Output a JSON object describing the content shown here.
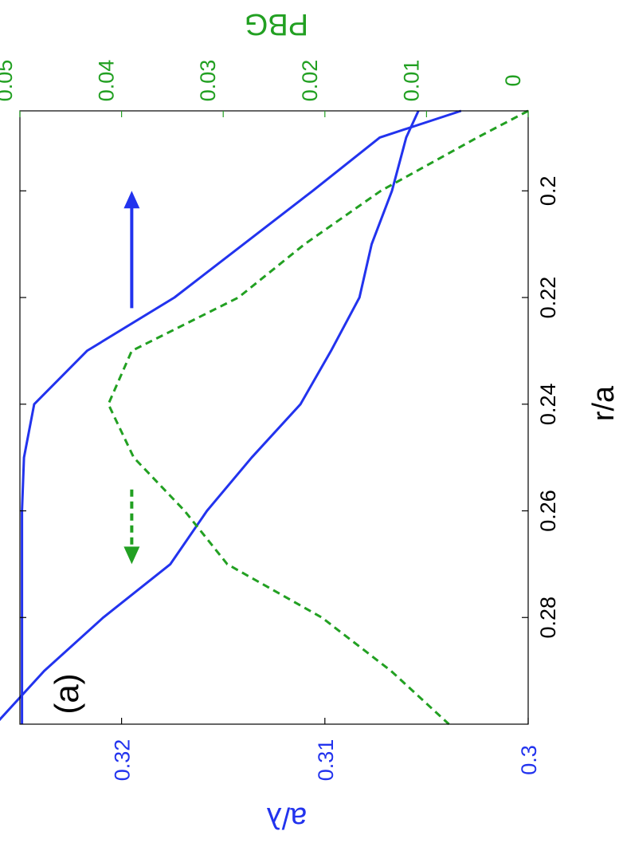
{
  "chart_data": {
    "type": "line",
    "panel_label": "(a)",
    "xlabel": "r/a",
    "ylabel_left": "a/λ",
    "ylabel_right": "PBG",
    "xlim": [
      0.185,
      0.3
    ],
    "ylim_left": [
      0.3,
      0.325
    ],
    "ylim_right": [
      0,
      0.05
    ],
    "x_ticks": [
      "0.2",
      "0.22",
      "0.24",
      "0.26",
      "0.28"
    ],
    "x_tick_values": [
      0.2,
      0.22,
      0.24,
      0.26,
      0.28
    ],
    "y_left_ticks": [
      "0.3",
      "0.31",
      "0.32"
    ],
    "y_left_tick_values": [
      0.3,
      0.31,
      0.32
    ],
    "y_right_ticks": [
      "0",
      "0.01",
      "0.02",
      "0.03",
      "0.04",
      "0.05"
    ],
    "y_right_tick_values": [
      0,
      0.01,
      0.02,
      0.03,
      0.04,
      0.05
    ],
    "colors": {
      "blue": "#2233ee",
      "green": "#22a022",
      "axes": "#000000"
    },
    "series": [
      {
        "axis": "left",
        "style": "solid",
        "color": "#2233ee",
        "x": [
          0.185,
          0.19,
          0.2,
          0.21,
          0.22,
          0.23,
          0.24,
          0.25,
          0.26,
          0.27,
          0.28,
          0.29,
          0.3
        ],
        "y": [
          0.3033,
          0.3073,
          0.3106,
          0.314,
          0.3174,
          0.3217,
          0.3243,
          0.3248,
          0.3249,
          0.3249,
          0.3249,
          0.3249,
          0.3249
        ]
      },
      {
        "axis": "left",
        "style": "solid",
        "color": "#2233ee",
        "x": [
          0.185,
          0.19,
          0.2,
          0.21,
          0.22,
          0.23,
          0.24,
          0.25,
          0.26,
          0.27,
          0.28,
          0.29,
          0.3
        ],
        "y": [
          0.3054,
          0.306,
          0.3067,
          0.3077,
          0.3083,
          0.3097,
          0.3112,
          0.3136,
          0.3158,
          0.3176,
          0.3209,
          0.3238,
          0.3262
        ]
      },
      {
        "axis": "right",
        "style": "dashed",
        "color": "#22a022",
        "x": [
          0.185,
          0.19,
          0.2,
          0.21,
          0.22,
          0.23,
          0.24,
          0.25,
          0.26,
          0.27,
          0.28,
          0.29,
          0.3
        ],
        "y": [
          0.0,
          0.005,
          0.0145,
          0.022,
          0.0285,
          0.039,
          0.0413,
          0.0388,
          0.0338,
          0.0296,
          0.0203,
          0.0135,
          0.0078
        ]
      }
    ],
    "arrows": [
      {
        "color": "#2233ee",
        "style": "solid",
        "x_from": 0.222,
        "x_to": 0.2,
        "y_left": 0.3195
      },
      {
        "color": "#22a022",
        "style": "dashed",
        "x_from": 0.256,
        "x_to": 0.27,
        "y_left": 0.3195
      }
    ]
  }
}
